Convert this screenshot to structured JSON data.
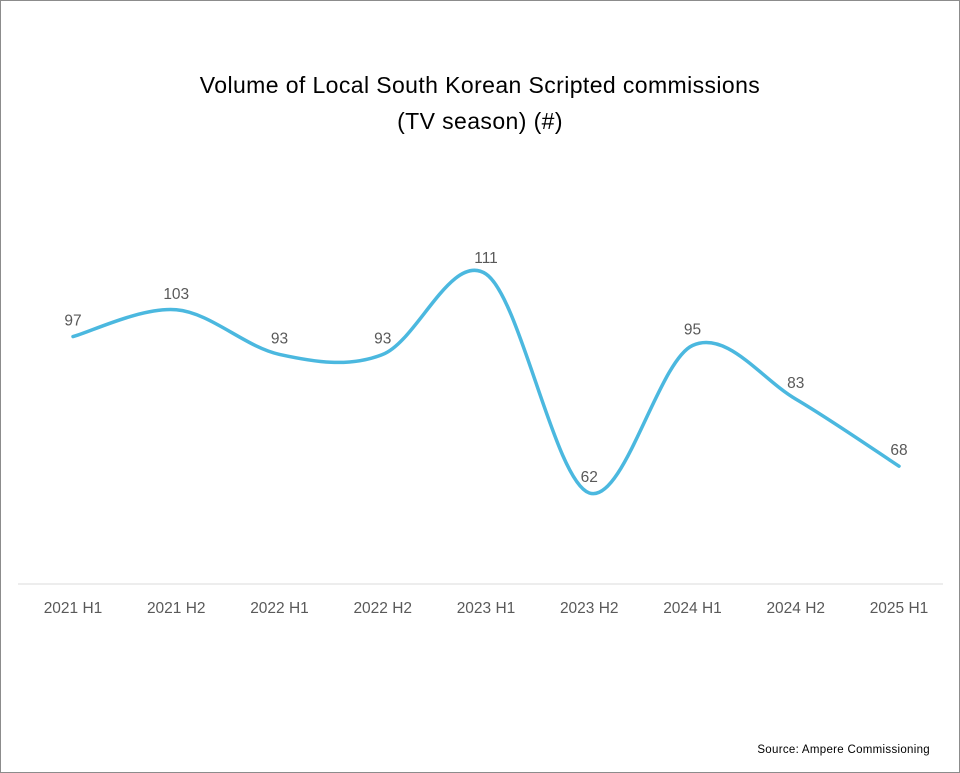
{
  "title": {
    "line1": "Volume of Local South Korean Scripted commissions",
    "line2": "(TV season) (#)"
  },
  "source_label": "Source: Ampere Commissioning",
  "chart_data": {
    "type": "line",
    "title": "Volume of Local South Korean Scripted commissions (TV season) (#)",
    "categories": [
      "2021 H1",
      "2021 H2",
      "2022 H1",
      "2022 H2",
      "2023 H1",
      "2023 H2",
      "2024 H1",
      "2024 H2",
      "2025 H1"
    ],
    "values": [
      97,
      103,
      93,
      93,
      111,
      62,
      95,
      83,
      68
    ],
    "xlabel": "",
    "ylabel": "",
    "data_labels_shown": true,
    "grid": false,
    "legend": "none",
    "smooth": true,
    "line_color": "#4BB8DF",
    "data_label_color": "#595959",
    "axis_label_color": "#595959",
    "axis_line_color": "#DBDBDB"
  }
}
